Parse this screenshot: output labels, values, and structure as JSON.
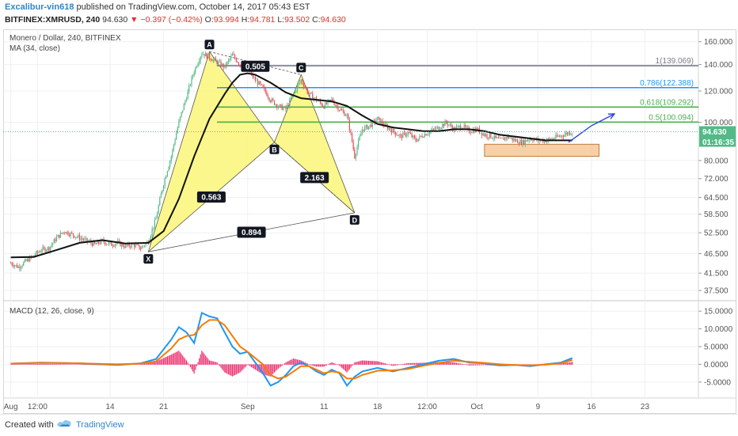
{
  "header": {
    "author": "Excalibur-vin618",
    "published": "published on TradingView.com, October 14, 2017 05:43 EST",
    "symbol": "BITFINEX:XMRUSD, 240",
    "price": "94.630",
    "change": "−0.397 (−0.42%)",
    "ohlc": [
      {
        "label": "O:",
        "value": "93.994"
      },
      {
        "label": "H:",
        "value": "94.781"
      },
      {
        "label": "L:",
        "value": "93.502"
      },
      {
        "label": "C:",
        "value": "94.630"
      }
    ]
  },
  "legend": {
    "title": "Monero / Dollar, 240, BITFINEX",
    "ma": "MA (34, close)",
    "macd": "MACD (12, 26, close, 9)"
  },
  "footer": {
    "created_with": "Created with",
    "brand": "TradingView"
  },
  "colors": {
    "up": "#53b987",
    "down": "#eb4d5c",
    "ma": "#111111",
    "macd": "#2196f3",
    "signal": "#f57c00",
    "hist": "#e91e63",
    "pattern_fill": "#fbf680",
    "fib_1": "#787b86",
    "fib_786": "#2196f3",
    "fib_618": "#4caf50",
    "fib_5": "#4caf50",
    "zone": "#f5c089",
    "arrow": "#1f3bd8"
  },
  "chart_data": [
    {
      "type": "candlestick",
      "title": "Monero / Dollar, 240, BITFINEX",
      "y_scale": "log",
      "y_ticks": [
        "160.000",
        "140.000",
        "120.000",
        "100.000",
        "80.000",
        "72.000",
        "64.500",
        "58.500",
        "52.500",
        "46.500",
        "41.500",
        "37.500"
      ],
      "price_badge": "94.630",
      "countdown_badge": "01:16:35",
      "x_ticks": [
        "Aug",
        "12:00",
        "14",
        "21",
        "Sep",
        "11",
        "18",
        "12:00",
        "Oct",
        "9",
        "16",
        "23"
      ],
      "x_tick_days": [
        1,
        4.5,
        14,
        21,
        32,
        42,
        49,
        55.5,
        62,
        70,
        77,
        84
      ],
      "xlim_days": [
        0,
        91
      ],
      "ylim": [
        35.5,
        172
      ],
      "price_path": [
        [
          1,
          44
        ],
        [
          2,
          43
        ],
        [
          3,
          44.5
        ],
        [
          4,
          46
        ],
        [
          5,
          47.5
        ],
        [
          6,
          48
        ],
        [
          7,
          51
        ],
        [
          8,
          53
        ],
        [
          9,
          52
        ],
        [
          10,
          51
        ],
        [
          11,
          50
        ],
        [
          12,
          49
        ],
        [
          13,
          50
        ],
        [
          14,
          49
        ],
        [
          15,
          49.5
        ],
        [
          16,
          48.5
        ],
        [
          17,
          49
        ],
        [
          18,
          48
        ],
        [
          19,
          50
        ],
        [
          20,
          57
        ],
        [
          21,
          70
        ],
        [
          22,
          82
        ],
        [
          23,
          100
        ],
        [
          24,
          116
        ],
        [
          25,
          135
        ],
        [
          26,
          150
        ],
        [
          27,
          146
        ],
        [
          28,
          142
        ],
        [
          29,
          138
        ],
        [
          30,
          148
        ],
        [
          31,
          140
        ],
        [
          32,
          136
        ],
        [
          33,
          128
        ],
        [
          34,
          122
        ],
        [
          35,
          114
        ],
        [
          36,
          110
        ],
        [
          37,
          108
        ],
        [
          38,
          118
        ],
        [
          39,
          128
        ],
        [
          40,
          118
        ],
        [
          41,
          114
        ],
        [
          42,
          110
        ],
        [
          43,
          114
        ],
        [
          44,
          108
        ],
        [
          45,
          104
        ],
        [
          46,
          82
        ],
        [
          47,
          96
        ],
        [
          48,
          98
        ],
        [
          49,
          102
        ],
        [
          50,
          98
        ],
        [
          51,
          95
        ],
        [
          52,
          92
        ],
        [
          53,
          94
        ],
        [
          54,
          90
        ],
        [
          55,
          93
        ],
        [
          56,
          95
        ],
        [
          57,
          97
        ],
        [
          58,
          100
        ],
        [
          59,
          96
        ],
        [
          60,
          98
        ],
        [
          61,
          95
        ],
        [
          62,
          96
        ],
        [
          63,
          93
        ],
        [
          64,
          92
        ],
        [
          65,
          90
        ],
        [
          66,
          92
        ],
        [
          67,
          90
        ],
        [
          68,
          89
        ],
        [
          69,
          91
        ],
        [
          70,
          90
        ],
        [
          71,
          90
        ],
        [
          72,
          91
        ],
        [
          73,
          92.5
        ],
        [
          74,
          93.994
        ],
        [
          74.5,
          94.63
        ]
      ],
      "ma_path": [
        [
          1,
          45.5
        ],
        [
          4,
          45.6
        ],
        [
          7,
          47.5
        ],
        [
          10,
          49.5
        ],
        [
          13,
          50.3
        ],
        [
          16,
          49.3
        ],
        [
          19,
          49.5
        ],
        [
          21,
          53
        ],
        [
          23,
          64
        ],
        [
          25,
          82
        ],
        [
          27,
          102
        ],
        [
          29,
          118
        ],
        [
          30,
          126
        ],
        [
          31,
          132
        ],
        [
          32,
          133
        ],
        [
          33,
          132
        ],
        [
          35,
          126
        ],
        [
          37,
          119
        ],
        [
          39,
          115
        ],
        [
          41,
          114
        ],
        [
          43,
          113
        ],
        [
          45,
          110
        ],
        [
          47,
          104
        ],
        [
          49,
          99
        ],
        [
          51,
          97
        ],
        [
          53,
          96
        ],
        [
          55,
          95
        ],
        [
          57,
          95
        ],
        [
          59,
          96
        ],
        [
          61,
          96
        ],
        [
          63,
          95
        ],
        [
          65,
          93
        ],
        [
          67,
          92
        ],
        [
          69,
          91
        ],
        [
          71,
          90
        ],
        [
          73,
          90
        ],
        [
          74.5,
          90
        ]
      ],
      "harmonic_pattern": {
        "points": [
          {
            "label": "X",
            "day": 19,
            "price": 47
          },
          {
            "label": "A",
            "day": 27,
            "price": 151
          },
          {
            "label": "B",
            "day": 35.5,
            "price": 89
          },
          {
            "label": "C",
            "day": 39,
            "price": 132
          },
          {
            "label": "D",
            "day": 46,
            "price": 59
          }
        ],
        "ratios": [
          {
            "text": "0.563",
            "leg": "XB"
          },
          {
            "text": "0.505",
            "leg": "AC"
          },
          {
            "text": "2.163",
            "leg": "BD"
          },
          {
            "text": "0.894",
            "leg": "XD"
          }
        ]
      },
      "fib_levels": [
        {
          "ratio_label": "1",
          "price": "139.069",
          "text": "1(139.069)"
        },
        {
          "ratio_label": "0.786",
          "price": "122.388",
          "text": "0.786(122.388)"
        },
        {
          "ratio_label": "0.618",
          "price": "109.292",
          "text": "0.618(109.292)"
        },
        {
          "ratio_label": "0.5",
          "price": "100.094",
          "text": "0.5(100.094)"
        }
      ],
      "support_zone": {
        "price_low": 82,
        "price_high": 88,
        "day_start": 63,
        "day_end": 78
      },
      "projection": [
        [
          74,
          89
        ],
        [
          77,
          98
        ],
        [
          80,
          105
        ]
      ]
    },
    {
      "type": "line",
      "title": "MACD (12, 26, close, 9)",
      "y_ticks": [
        "15.0000",
        "10.0000",
        "5.0000",
        "0.0000",
        "-5.0000"
      ],
      "ylim": [
        -9.5,
        17.5
      ],
      "series": [
        {
          "name": "MACD",
          "points": [
            [
              1,
              0.2
            ],
            [
              5,
              0.5
            ],
            [
              10,
              0.3
            ],
            [
              15,
              -0.2
            ],
            [
              18,
              0.3
            ],
            [
              20,
              1.5
            ],
            [
              22,
              7
            ],
            [
              23,
              10.5
            ],
            [
              24,
              9
            ],
            [
              25,
              6
            ],
            [
              26,
              14.5
            ],
            [
              27,
              13.5
            ],
            [
              28,
              13
            ],
            [
              29,
              9
            ],
            [
              30,
              5
            ],
            [
              31,
              3
            ],
            [
              32,
              3.5
            ],
            [
              34,
              -2.5
            ],
            [
              35,
              -6
            ],
            [
              36,
              -5
            ],
            [
              37,
              -3
            ],
            [
              38,
              -0.5
            ],
            [
              39,
              0.5
            ],
            [
              40,
              -0.5
            ],
            [
              41,
              -2
            ],
            [
              42,
              -3
            ],
            [
              43,
              -1.5
            ],
            [
              44,
              -2.5
            ],
            [
              45,
              -6
            ],
            [
              46,
              -3.5
            ],
            [
              47,
              -2
            ],
            [
              49,
              -1
            ],
            [
              51,
              -2
            ],
            [
              53,
              -1
            ],
            [
              55,
              0
            ],
            [
              57,
              1
            ],
            [
              59,
              1.5
            ],
            [
              61,
              0.5
            ],
            [
              63,
              0.3
            ],
            [
              65,
              -0.3
            ],
            [
              67,
              -0.2
            ],
            [
              69,
              -0.5
            ],
            [
              71,
              0
            ],
            [
              73,
              0.5
            ],
            [
              74.5,
              1.8
            ]
          ]
        },
        {
          "name": "Signal",
          "points": [
            [
              1,
              0.2
            ],
            [
              5,
              0.4
            ],
            [
              10,
              0.3
            ],
            [
              15,
              0
            ],
            [
              18,
              0.2
            ],
            [
              20,
              0.8
            ],
            [
              22,
              4.5
            ],
            [
              23,
              7
            ],
            [
              24,
              8
            ],
            [
              25,
              8.3
            ],
            [
              26,
              11
            ],
            [
              27,
              12.5
            ],
            [
              28,
              12.5
            ],
            [
              29,
              11
            ],
            [
              30,
              8
            ],
            [
              31,
              5
            ],
            [
              32,
              3.5
            ],
            [
              34,
              0
            ],
            [
              35,
              -3
            ],
            [
              36,
              -4
            ],
            [
              37,
              -3.5
            ],
            [
              38,
              -2
            ],
            [
              39,
              -0.5
            ],
            [
              40,
              -0.5
            ],
            [
              41,
              -1.5
            ],
            [
              42,
              -2.5
            ],
            [
              43,
              -2
            ],
            [
              44,
              -2.3
            ],
            [
              45,
              -4
            ],
            [
              46,
              -4
            ],
            [
              47,
              -3
            ],
            [
              49,
              -1.8
            ],
            [
              51,
              -1.7
            ],
            [
              53,
              -1.3
            ],
            [
              55,
              -0.4
            ],
            [
              57,
              0.4
            ],
            [
              59,
              1
            ],
            [
              61,
              0.7
            ],
            [
              63,
              0.4
            ],
            [
              65,
              0
            ],
            [
              67,
              -0.2
            ],
            [
              69,
              -0.3
            ],
            [
              71,
              -0.1
            ],
            [
              73,
              0.3
            ],
            [
              74.5,
              1.2
            ]
          ]
        }
      ]
    }
  ]
}
